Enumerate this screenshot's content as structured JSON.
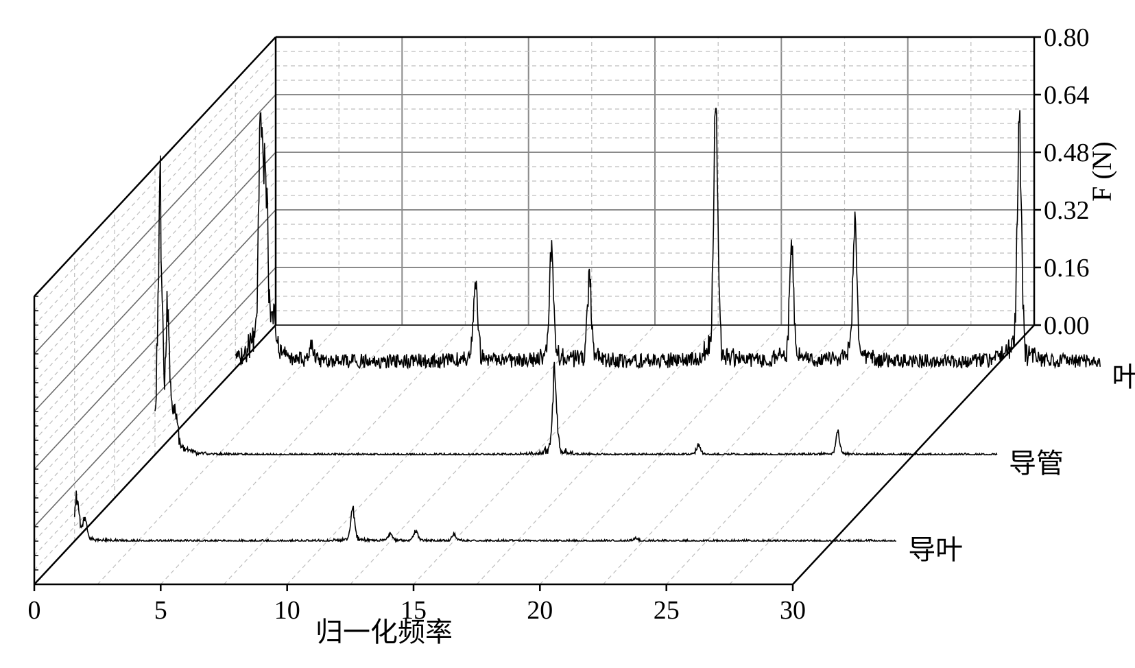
{
  "chart_data": {
    "type": "line",
    "title": "",
    "xlabel": "归一化频率",
    "zlabel": "F (N)",
    "x_ticks": [
      "0",
      "5",
      "10",
      "15",
      "20",
      "25",
      "30"
    ],
    "xlim": [
      0,
      30
    ],
    "z_ticks": [
      "0.00",
      "0.16",
      "0.32",
      "0.48",
      "0.64",
      "0.80"
    ],
    "zlim": [
      0,
      0.8
    ],
    "grid": true,
    "series": [
      {
        "name": "叶轮",
        "baseline": 0.02,
        "noise": 0.02,
        "peaks": [
          [
            1,
            0.7
          ],
          [
            1.2,
            0.48
          ],
          [
            1.5,
            0.12
          ],
          [
            3,
            0.05
          ],
          [
            9.5,
            0.23
          ],
          [
            12.5,
            0.32
          ],
          [
            14,
            0.25
          ],
          [
            19,
            0.7
          ],
          [
            22,
            0.32
          ],
          [
            24.5,
            0.4
          ],
          [
            31,
            0.68
          ],
          [
            36,
            0.1
          ]
        ]
      },
      {
        "name": "导管",
        "baseline": 0.0,
        "noise": 0.004,
        "peaks": [
          [
            0.2,
            0.7
          ],
          [
            0.5,
            0.4
          ],
          [
            0.8,
            0.1
          ],
          [
            15.8,
            0.24
          ],
          [
            21.5,
            0.03
          ],
          [
            27,
            0.06
          ]
        ]
      },
      {
        "name": "导叶",
        "baseline": 0.0,
        "noise": 0.004,
        "peaks": [
          [
            0.1,
            0.13
          ],
          [
            0.4,
            0.06
          ],
          [
            11,
            0.09
          ],
          [
            12.5,
            0.02
          ],
          [
            13.5,
            0.03
          ],
          [
            15,
            0.02
          ],
          [
            22.2,
            0.01
          ]
        ]
      }
    ]
  }
}
